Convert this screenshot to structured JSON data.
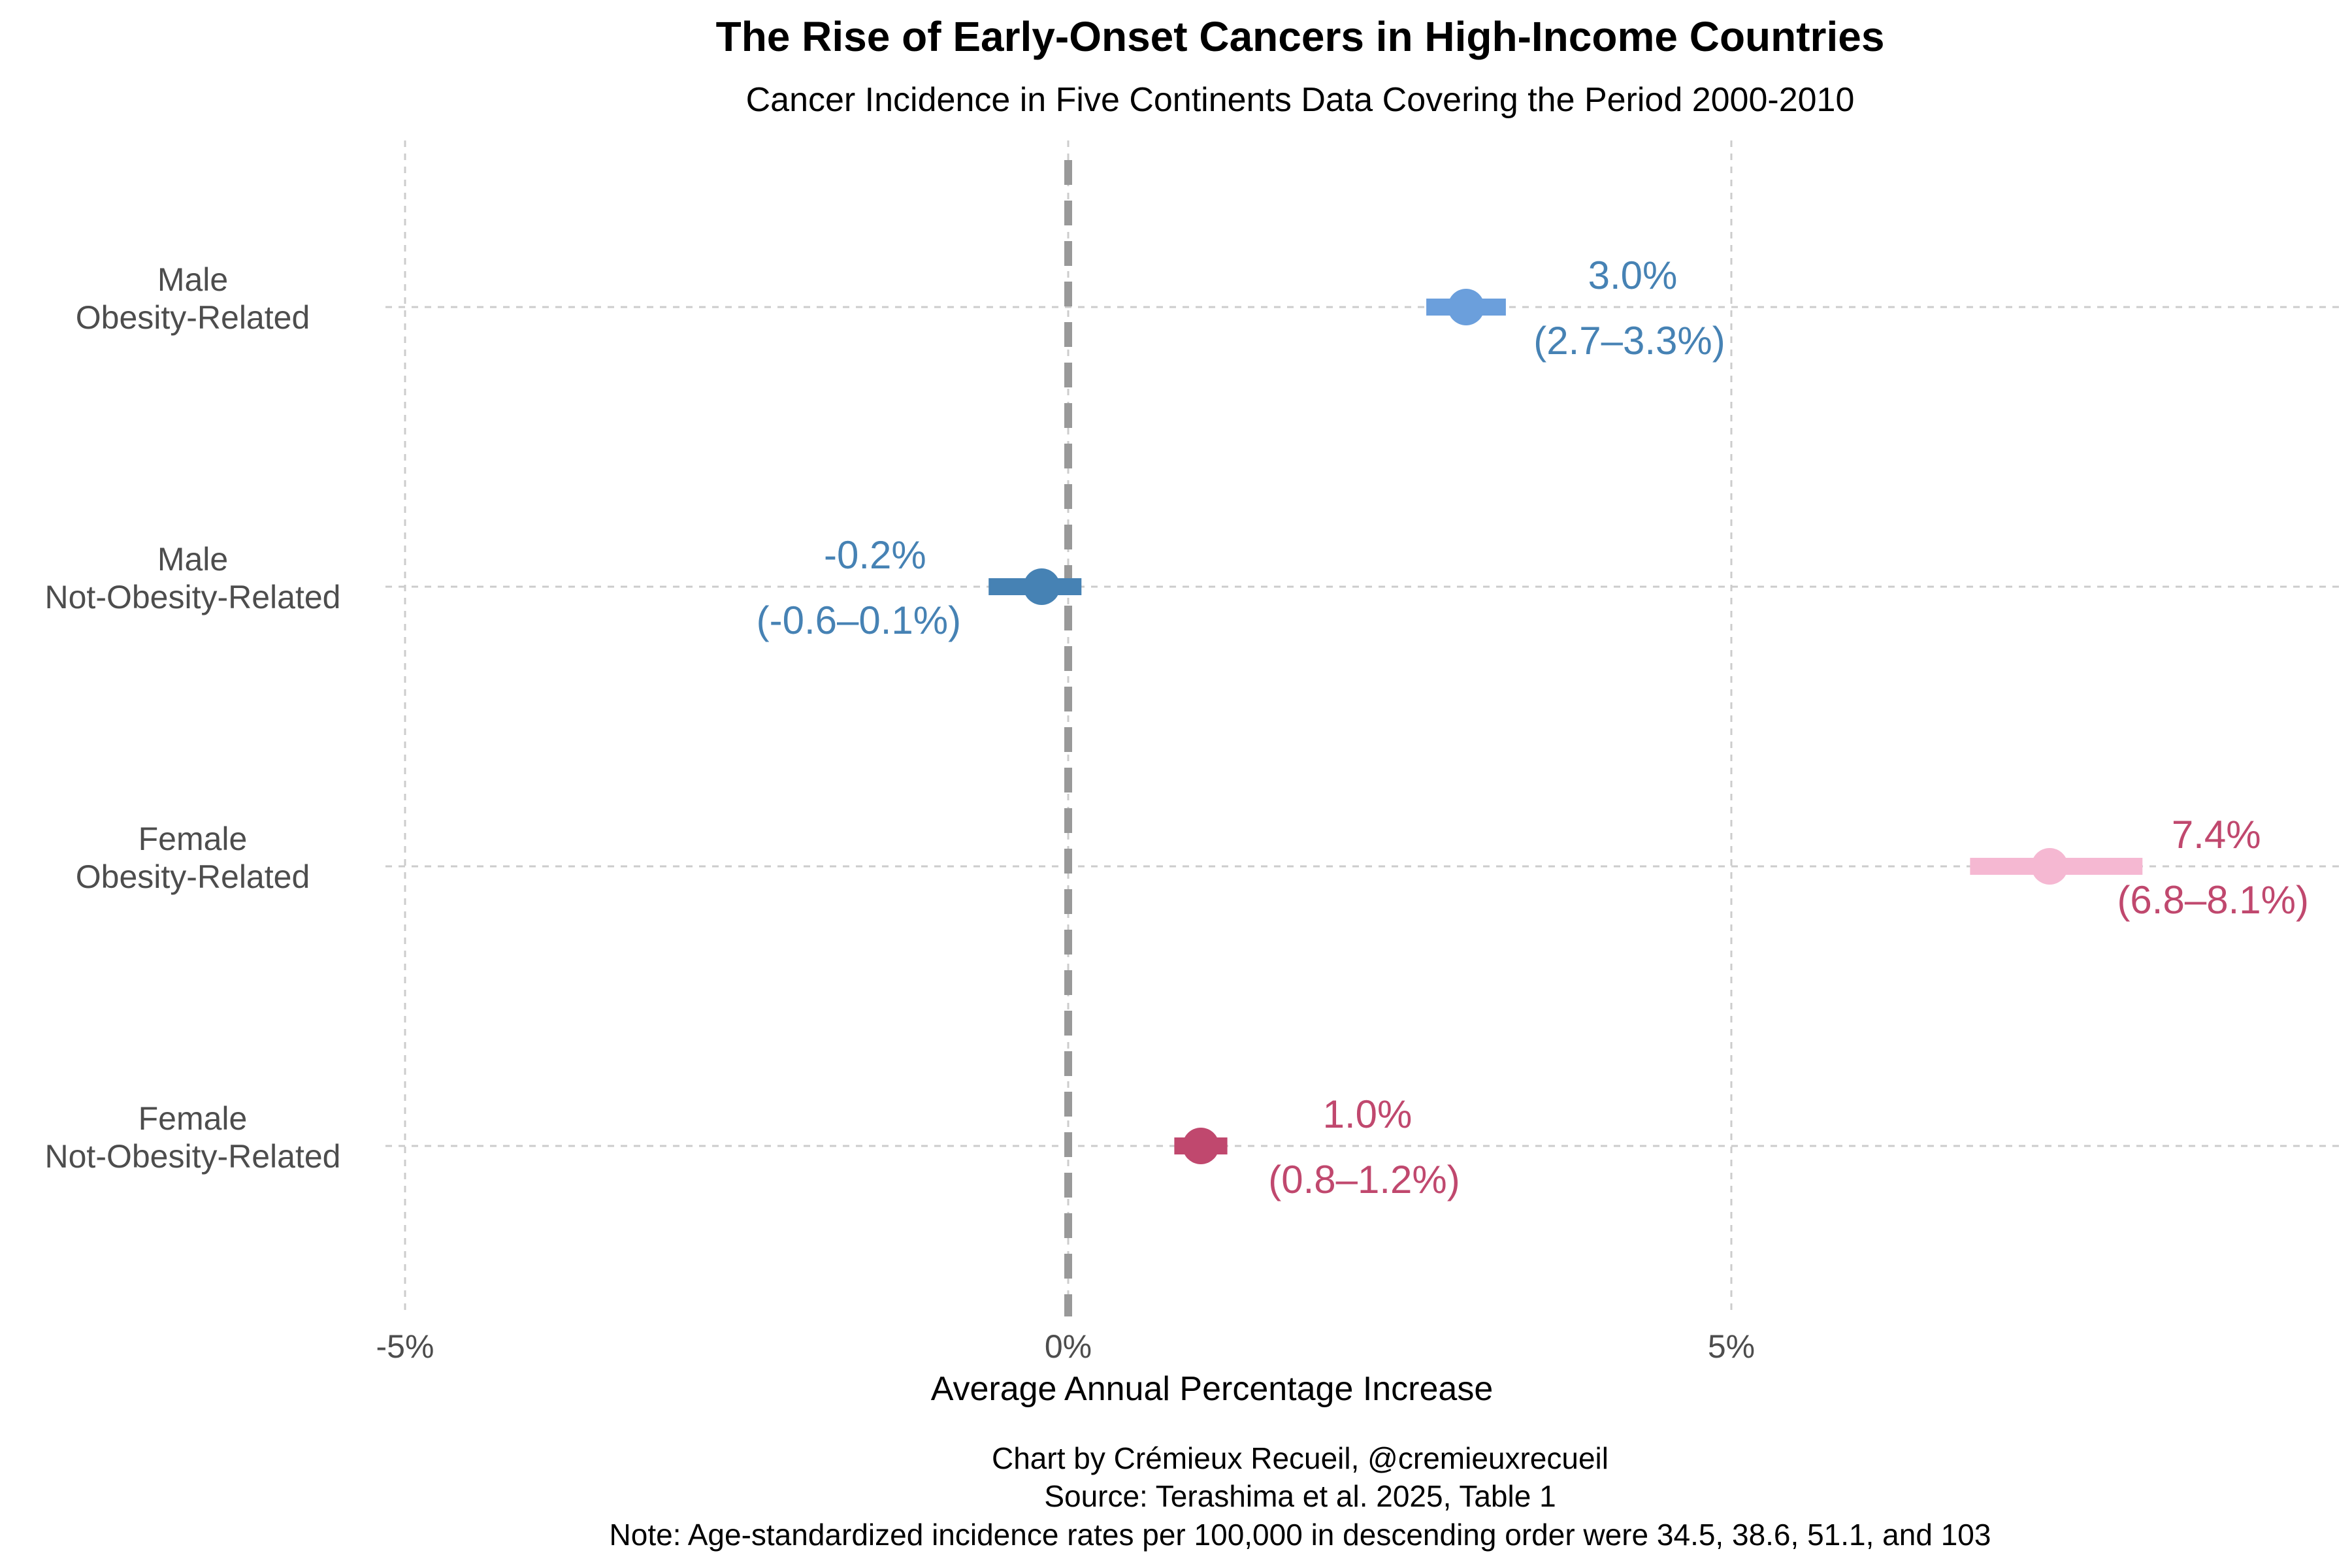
{
  "chart_data": {
    "type": "forest",
    "title": "The Rise of Early-Onset Cancers in High-Income Countries",
    "subtitle": "Cancer Incidence in Five Continents Data Covering the Period 2000-2010",
    "xlabel": "Average Annual Percentage Increase",
    "ylabel": "",
    "xlim": [
      -5,
      9.5
    ],
    "x_ticks": [
      -5,
      0,
      5
    ],
    "x_tick_labels": [
      "-5%",
      "0%",
      "5%"
    ],
    "reference_line": 0,
    "grid": true,
    "grid_style": "dashed",
    "legend": "none",
    "categories": [
      [
        "Male",
        "Obesity-Related"
      ],
      [
        "Male",
        "Not-Obesity-Related"
      ],
      [
        "Female",
        "Obesity-Related"
      ],
      [
        "Female",
        "Not-Obesity-Related"
      ]
    ],
    "series": [
      {
        "estimate": 3.0,
        "lower": 2.7,
        "upper": 3.3,
        "label_value": "3.0%",
        "label_ci": "(2.7–3.3%)",
        "point_color": "#6b9fdc",
        "text_color": "#4682b4"
      },
      {
        "estimate": -0.2,
        "lower": -0.6,
        "upper": 0.1,
        "label_value": "-0.2%",
        "label_ci": "(-0.6–0.1%)",
        "point_color": "#4682b4",
        "text_color": "#4682b4"
      },
      {
        "estimate": 7.4,
        "lower": 6.8,
        "upper": 8.1,
        "label_value": "7.4%",
        "label_ci": "(6.8–8.1%)",
        "point_color": "#f5b8d2",
        "text_color": "#c0486e"
      },
      {
        "estimate": 1.0,
        "lower": 0.8,
        "upper": 1.2,
        "label_value": "1.0%",
        "label_ci": "(0.8–1.2%)",
        "point_color": "#c0486e",
        "text_color": "#c0486e"
      }
    ],
    "caption": [
      "Chart by Crémieux Recueil, @cremieuxrecueil",
      "Source: Terashima et al. 2025, Table 1",
      "Note: Age-standardized incidence rates per 100,000 in descending order were 34.5, 38.6, 51.1, and 103"
    ]
  },
  "colors": {
    "grid": "#cccccc",
    "reference_line": "#999999",
    "tick_text": "#4d4d4d"
  }
}
